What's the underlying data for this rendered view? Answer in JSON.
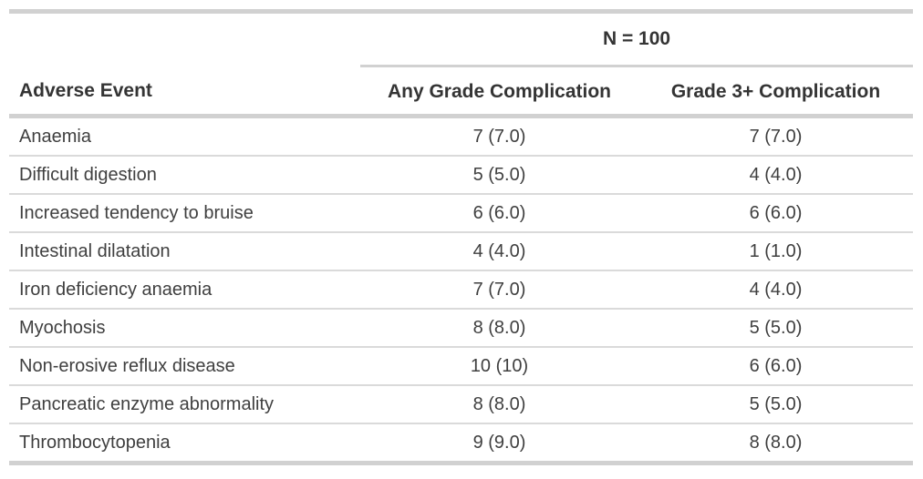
{
  "chart_data": {
    "type": "table",
    "spanner": {
      "label": "N = 100",
      "spans_columns": [
        "Any Grade Complication",
        "Grade 3+ Complication"
      ]
    },
    "columns": [
      "Adverse Event",
      "Any Grade Complication",
      "Grade 3+ Complication"
    ],
    "rows": [
      [
        "Anaemia",
        "7 (7.0)",
        "7 (7.0)"
      ],
      [
        "Difficult digestion",
        "5 (5.0)",
        "4 (4.0)"
      ],
      [
        "Increased tendency to bruise",
        "6 (6.0)",
        "6 (6.0)"
      ],
      [
        "Intestinal dilatation",
        "4 (4.0)",
        "1 (1.0)"
      ],
      [
        "Iron deficiency anaemia",
        "7 (7.0)",
        "4 (4.0)"
      ],
      [
        "Myochosis",
        "8 (8.0)",
        "5 (5.0)"
      ],
      [
        "Non-erosive reflux disease",
        "10 (10)",
        "6 (6.0)"
      ],
      [
        "Pancreatic enzyme abnormality",
        "8 (8.0)",
        "5 (5.0)"
      ],
      [
        "Thrombocytopenia",
        "9 (9.0)",
        "8 (8.0)"
      ]
    ],
    "value_format": "n (%)",
    "layout_hints": {
      "first_column_align": "left",
      "value_columns_align": "center",
      "grid": "horizontal-rules-only"
    }
  },
  "colors": {
    "background": "#ffffff",
    "rule_heavy": "#d1d1d1",
    "rule_light": "#dadada",
    "header_text": "#343434",
    "body_text": "#3f3f3f"
  }
}
